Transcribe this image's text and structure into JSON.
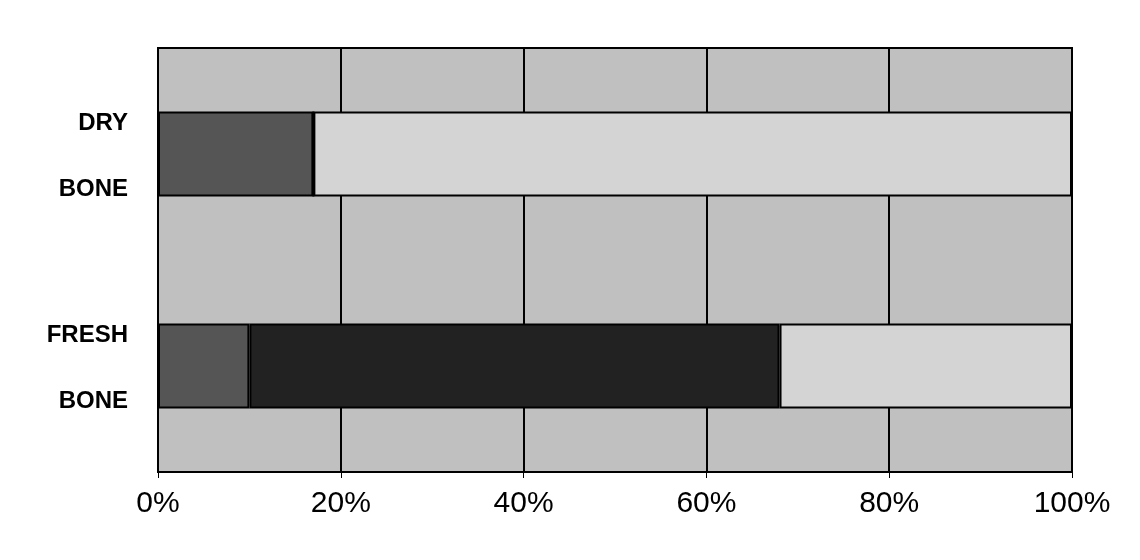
{
  "chart_data": {
    "type": "bar",
    "orientation": "horizontal",
    "stacked": true,
    "categories": [
      "DRY BONE",
      "FRESH BONE"
    ],
    "series": [
      {
        "color": "#555555",
        "values": [
          17,
          10
        ]
      },
      {
        "color": "#222222",
        "values": [
          0,
          58
        ]
      },
      {
        "color": "#d4d4d4",
        "values": [
          83,
          32
        ]
      }
    ],
    "xlim": [
      0,
      100
    ],
    "xticks": [
      {
        "value": 0,
        "label": "0%"
      },
      {
        "value": 20,
        "label": "20%"
      },
      {
        "value": 40,
        "label": "40%"
      },
      {
        "value": 60,
        "label": "60%"
      },
      {
        "value": 80,
        "label": "80%"
      },
      {
        "value": 100,
        "label": "100%"
      }
    ],
    "grid": "x"
  }
}
